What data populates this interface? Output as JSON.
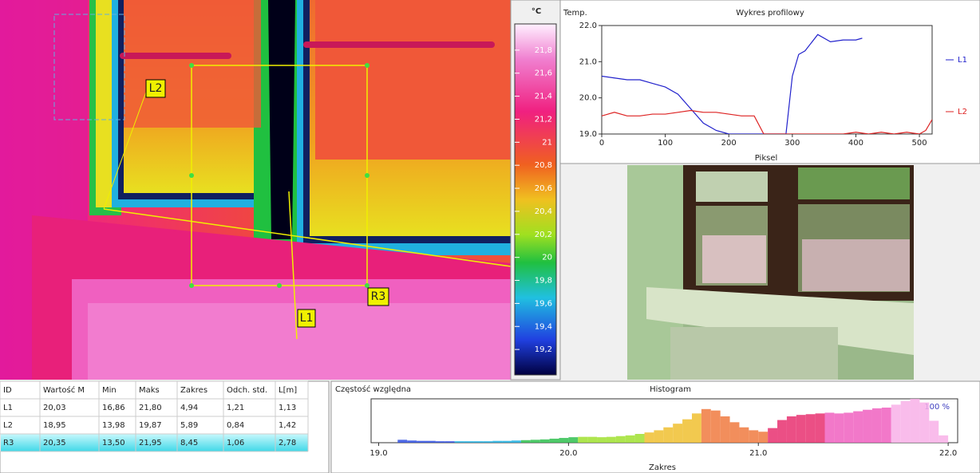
{
  "thermal_image": {
    "labels": [
      "L2",
      "L1",
      "R3"
    ]
  },
  "color_scale": {
    "unit": "°C",
    "ylim": [
      19.0,
      22.0
    ],
    "ticks": [
      {
        "value": 21.8,
        "label": "21,8"
      },
      {
        "value": 21.6,
        "label": "21,6"
      },
      {
        "value": 21.4,
        "label": "21,4"
      },
      {
        "value": 21.2,
        "label": "21,2"
      },
      21,
      {
        "value": 20.8,
        "label": "20,8"
      },
      {
        "value": 20.6,
        "label": "20,6"
      },
      {
        "value": 20.4,
        "label": "20,4"
      },
      {
        "value": 20.2,
        "label": "20,2"
      },
      20,
      {
        "value": 19.8,
        "label": "19,8"
      },
      {
        "value": 19.6,
        "label": "19,6"
      },
      {
        "value": 19.4,
        "label": "19,4"
      },
      {
        "value": 19.2,
        "label": "19,2"
      }
    ]
  },
  "profile_chart": {
    "type": "line",
    "title": "Wykres profilowy",
    "ylabel": "Temp.",
    "xlabel": "Piksel",
    "xlim": [
      0,
      520
    ],
    "xticks": [
      0,
      100,
      200,
      300,
      400,
      500
    ],
    "ylim": [
      19,
      22
    ],
    "yticks": [
      {
        "value": 19,
        "label": "19.0"
      },
      {
        "value": 20,
        "label": "20.0"
      },
      {
        "value": 21,
        "label": "21.0"
      },
      {
        "value": 22,
        "label": "22.0"
      }
    ],
    "series": [
      {
        "name": "L1",
        "color": "#2222cc",
        "x": [
          0,
          20,
          40,
          60,
          80,
          100,
          120,
          140,
          160,
          180,
          200,
          290,
          300,
          310,
          320,
          340,
          360,
          380,
          400,
          410
        ],
        "values": [
          20.6,
          20.55,
          20.5,
          20.5,
          20.4,
          20.3,
          20.1,
          19.7,
          19.3,
          19.1,
          19.0,
          19.0,
          20.6,
          21.2,
          21.3,
          21.75,
          21.55,
          21.6,
          21.6,
          21.65
        ]
      },
      {
        "name": "L2",
        "color": "#dd2222",
        "x": [
          0,
          20,
          40,
          60,
          80,
          100,
          120,
          140,
          160,
          180,
          200,
          220,
          240,
          255,
          380,
          400,
          420,
          440,
          460,
          480,
          500,
          510,
          520
        ],
        "values": [
          19.5,
          19.6,
          19.5,
          19.5,
          19.55,
          19.55,
          19.6,
          19.65,
          19.6,
          19.6,
          19.55,
          19.5,
          19.5,
          19.0,
          19.0,
          19.05,
          19.0,
          19.05,
          19.0,
          19.05,
          19.0,
          19.1,
          19.4
        ]
      }
    ]
  },
  "table": {
    "columns": [
      "ID",
      "Wartość M",
      "Min",
      "Maks",
      "Zakres",
      "Odch. std.",
      "L[m]"
    ],
    "rows": [
      [
        "L1",
        "20,03",
        "16,86",
        "21,80",
        "4,94",
        "1,21",
        "1,13"
      ],
      [
        "L2",
        "18,95",
        "13,98",
        "19,87",
        "5,89",
        "0,84",
        "1,42"
      ],
      [
        "R3",
        "20,35",
        "13,50",
        "21,95",
        "8,45",
        "1,06",
        "2,78"
      ]
    ]
  },
  "histogram": {
    "type": "histogram",
    "title": "Histogram",
    "ylabel": "Częstość względna",
    "xlabel": "Zakres",
    "annotation": "100 %",
    "xlim": [
      18.96,
      22.05
    ],
    "xticks": [
      {
        "value": 19,
        "label": "19.0"
      },
      {
        "value": 20,
        "label": "20.0"
      },
      {
        "value": 21,
        "label": "21.0"
      },
      {
        "value": 22,
        "label": "22.0"
      }
    ],
    "ylim": [
      0,
      0.012
    ],
    "bins": [
      19.1,
      19.15,
      19.2,
      19.25,
      19.3,
      19.35,
      19.4,
      19.45,
      19.5,
      19.55,
      19.6,
      19.65,
      19.7,
      19.75,
      19.8,
      19.85,
      19.9,
      19.95,
      20.0,
      20.05,
      20.1,
      20.15,
      20.2,
      20.25,
      20.3,
      20.35,
      20.4,
      20.45,
      20.5,
      20.55,
      20.6,
      20.65,
      20.7,
      20.75,
      20.8,
      20.85,
      20.9,
      20.95,
      21.0,
      21.05,
      21.1,
      21.15,
      21.2,
      21.25,
      21.3,
      21.35,
      21.4,
      21.45,
      21.5,
      21.55,
      21.6,
      21.65,
      21.7,
      21.75,
      21.8,
      21.85,
      21.9,
      21.95,
      22.0
    ],
    "values": [
      0.0008,
      0.0006,
      0.0005,
      0.0005,
      0.0004,
      0.0004,
      0.0004,
      0.0004,
      0.0004,
      0.0004,
      0.0005,
      0.0005,
      0.0006,
      0.0007,
      0.0008,
      0.0009,
      0.0011,
      0.0013,
      0.0015,
      0.0016,
      0.0016,
      0.0015,
      0.0016,
      0.0018,
      0.002,
      0.0024,
      0.0028,
      0.0034,
      0.0042,
      0.0052,
      0.0064,
      0.008,
      0.0092,
      0.0088,
      0.0072,
      0.0056,
      0.0042,
      0.0034,
      0.003,
      0.004,
      0.0062,
      0.0072,
      0.0076,
      0.0078,
      0.008,
      0.0082,
      0.008,
      0.0082,
      0.0086,
      0.009,
      0.0094,
      0.0096,
      0.0104,
      0.0114,
      0.012,
      0.011,
      0.006,
      0.002
    ]
  }
}
